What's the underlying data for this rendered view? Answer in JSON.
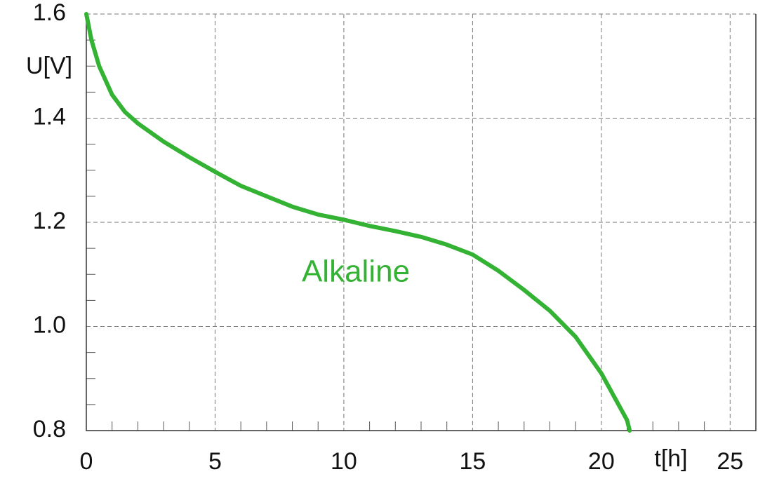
{
  "chart_data": {
    "type": "line",
    "y_label": "U[V]",
    "x_label": "t[h]",
    "annotation": "Alkaline",
    "x": [
      0,
      0.2,
      0.5,
      1,
      1.5,
      2,
      3,
      4,
      5,
      6,
      7,
      8,
      9,
      10,
      11,
      12,
      13,
      14,
      15,
      16,
      17,
      18,
      19,
      20,
      21,
      21.1
    ],
    "series": [
      {
        "name": "Alkaline",
        "color": "#33b233",
        "values": [
          1.6,
          1.55,
          1.5,
          1.445,
          1.412,
          1.39,
          1.355,
          1.325,
          1.297,
          1.27,
          1.25,
          1.23,
          1.215,
          1.205,
          1.193,
          1.183,
          1.172,
          1.157,
          1.138,
          1.107,
          1.07,
          1.03,
          0.98,
          0.91,
          0.82,
          0.8
        ]
      }
    ],
    "xlim": [
      0,
      26
    ],
    "ylim": [
      0.8,
      1.6
    ],
    "xticks": [
      0,
      5,
      10,
      15,
      20,
      25
    ],
    "yticks": [
      {
        "value": 0.8,
        "label": "0.8"
      },
      {
        "value": 1,
        "label": "1.0"
      },
      1.2,
      1.4,
      1.6
    ],
    "xminorticks": [
      1,
      2,
      3,
      4,
      6,
      7,
      8,
      9,
      11,
      12,
      13,
      14,
      16,
      17,
      18,
      19,
      21,
      22,
      23,
      24
    ],
    "yminorticks": [
      0.85,
      0.9,
      0.95,
      1.05,
      1.1,
      1.15,
      1.25,
      1.3,
      1.35,
      1.45,
      1.5,
      1.55
    ],
    "grid": true
  }
}
